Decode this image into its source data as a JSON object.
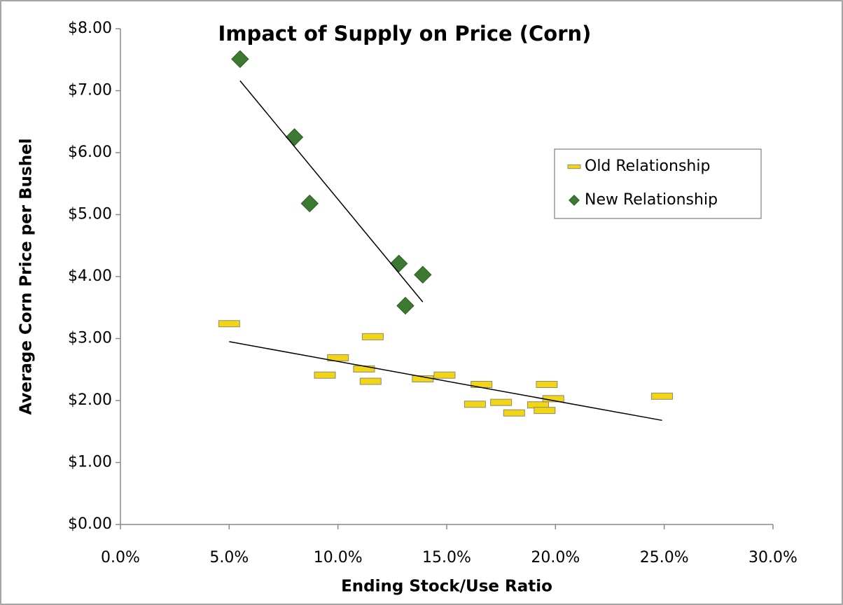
{
  "chart_data": {
    "type": "scatter",
    "title": "Impact of Supply on Price (Corn)",
    "xlabel": "Ending Stock/Use Ratio",
    "ylabel": "Average Corn Price per Bushel",
    "xlim": [
      0,
      30
    ],
    "xticks": [
      {
        "value": 0,
        "label": "0.0%"
      },
      {
        "value": 5,
        "label": "5.0%"
      },
      {
        "value": 10,
        "label": "10.0%"
      },
      {
        "value": 15,
        "label": "15.0%"
      },
      {
        "value": 20,
        "label": "20.0%"
      },
      {
        "value": 25,
        "label": "25.0%"
      },
      {
        "value": 30,
        "label": "30.0%"
      }
    ],
    "ylim": [
      0,
      8
    ],
    "yticks": [
      {
        "value": 0,
        "label": "$0.00"
      },
      {
        "value": 1,
        "label": "$1.00"
      },
      {
        "value": 2,
        "label": "$2.00"
      },
      {
        "value": 3,
        "label": "$3.00"
      },
      {
        "value": 4,
        "label": "$4.00"
      },
      {
        "value": 5,
        "label": "$5.00"
      },
      {
        "value": 6,
        "label": "$6.00"
      },
      {
        "value": 7,
        "label": "$7.00"
      },
      {
        "value": 8,
        "label": "$8.00"
      }
    ],
    "grid": false,
    "legend": "right",
    "series": [
      {
        "name": "Old Relationship",
        "color": "#f2d616",
        "marker": "dash",
        "x": [
          5.0,
          10.0,
          9.4,
          11.2,
          11.5,
          11.6,
          13.9,
          14.9,
          16.3,
          16.6,
          17.5,
          18.1,
          19.2,
          19.5,
          19.6,
          19.9,
          24.9
        ],
        "values": [
          3.24,
          2.69,
          2.41,
          2.51,
          2.31,
          3.03,
          2.35,
          2.41,
          1.94,
          2.26,
          1.97,
          1.8,
          1.93,
          1.84,
          2.26,
          2.03,
          2.07
        ],
        "trendline": {
          "x": [
            5.0,
            24.9
          ],
          "y": [
            2.95,
            1.68
          ]
        }
      },
      {
        "name": "New Relationship",
        "color": "#3b7a30",
        "marker": "diamond",
        "x": [
          5.5,
          8.0,
          8.7,
          12.8,
          13.1,
          13.9
        ],
        "values": [
          7.51,
          6.25,
          5.18,
          4.21,
          3.53,
          4.03
        ],
        "trendline": {
          "x": [
            5.5,
            13.9
          ],
          "y": [
            7.16,
            3.59
          ]
        }
      }
    ]
  }
}
